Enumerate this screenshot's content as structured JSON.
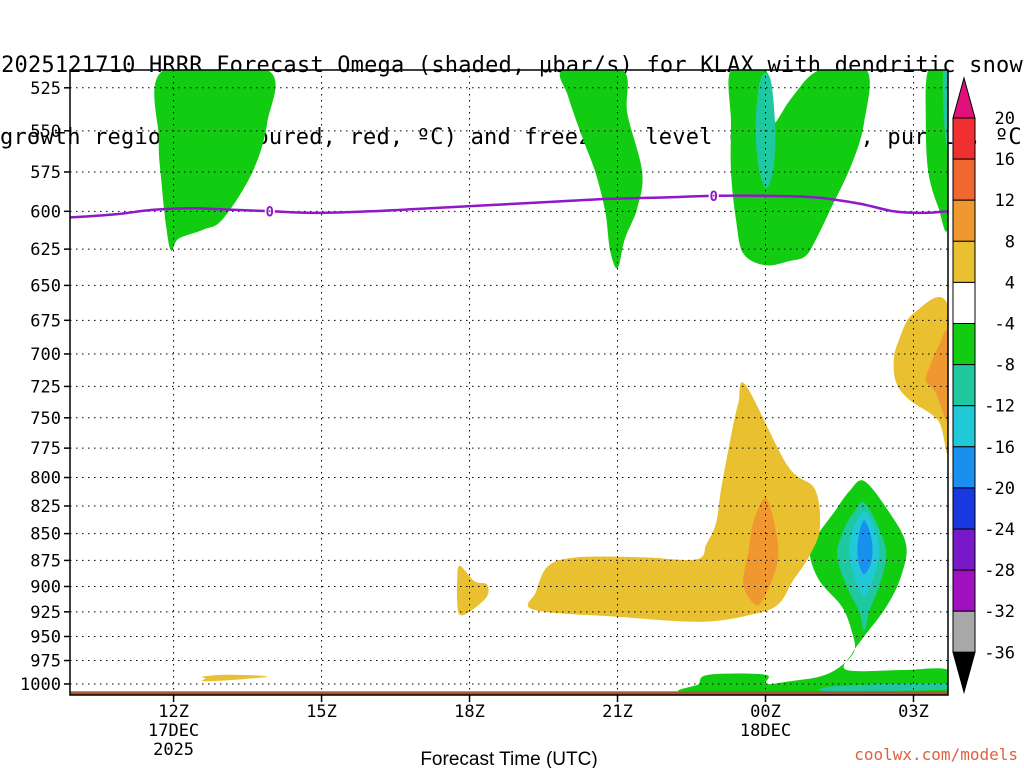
{
  "chart_data": {
    "type": "heatmap",
    "title_line1": "2025121710 HRRR Forecast Omega (shaded, μbar/s) for KLAX with dendritic snow",
    "title_line2": "growth region (contoured, red, ºC) and freezing level (contoured, purple, ºC)",
    "xlabel": "Forecast Time (UTC)",
    "ylabel": "",
    "xlim": [
      9.9,
      27.7
    ],
    "ylim": [
      1012,
      515
    ],
    "y_ticks": [
      525,
      550,
      575,
      600,
      625,
      650,
      675,
      700,
      725,
      750,
      775,
      800,
      825,
      850,
      875,
      900,
      925,
      950,
      975,
      1000
    ],
    "x_ticks": [
      {
        "hour": 12,
        "label": "12Z",
        "date": "17DEC",
        "year": "2025"
      },
      {
        "hour": 15,
        "label": "15Z",
        "date": "",
        "year": ""
      },
      {
        "hour": 18,
        "label": "18Z",
        "date": "",
        "year": ""
      },
      {
        "hour": 21,
        "label": "21Z",
        "date": "",
        "year": ""
      },
      {
        "hour": 24,
        "label": "00Z",
        "date": "18DEC",
        "year": ""
      },
      {
        "hour": 27,
        "label": "03Z",
        "date": "",
        "year": ""
      }
    ],
    "colorbar": {
      "labels": [
        "20",
        "16",
        "12",
        "8",
        "4",
        "-4",
        "-8",
        "-12",
        "-16",
        "-20",
        "-24",
        "-28",
        "-32",
        "-36"
      ],
      "bins": [
        {
          "range": [
            20,
            24
          ],
          "color": "#e0107a"
        },
        {
          "range": [
            16,
            20
          ],
          "color": "#f03030"
        },
        {
          "range": [
            12,
            16
          ],
          "color": "#f06830"
        },
        {
          "range": [
            8,
            12
          ],
          "color": "#f09830"
        },
        {
          "range": [
            4,
            8
          ],
          "color": "#e8c030"
        },
        {
          "range": [
            -4,
            4
          ],
          "color": "#ffffff"
        },
        {
          "range": [
            -8,
            -4
          ],
          "color": "#11cc11"
        },
        {
          "range": [
            -12,
            -8
          ],
          "color": "#20c8a0"
        },
        {
          "range": [
            -16,
            -12
          ],
          "color": "#20c8d8"
        },
        {
          "range": [
            -20,
            -16
          ],
          "color": "#1890f0"
        },
        {
          "range": [
            -24,
            -20
          ],
          "color": "#1838e0"
        },
        {
          "range": [
            -28,
            -24
          ],
          "color": "#7818c8"
        },
        {
          "range": [
            -32,
            -28
          ],
          "color": "#a010c0"
        },
        {
          "range": [
            -36,
            -32
          ],
          "color": "#a8a8a8"
        },
        {
          "range": [
            -40,
            -36
          ],
          "color": "#000000"
        }
      ]
    },
    "freezing_level": {
      "label": "0",
      "color": "#9018c8",
      "points": [
        [
          9.9,
          604
        ],
        [
          10.8,
          602
        ],
        [
          11.6,
          599
        ],
        [
          12.4,
          598
        ],
        [
          13.2,
          599
        ],
        [
          14.0,
          600
        ],
        [
          14.9,
          601
        ],
        [
          16.0,
          600
        ],
        [
          17.2,
          598
        ],
        [
          18.4,
          596
        ],
        [
          19.6,
          594
        ],
        [
          20.8,
          592
        ],
        [
          22.0,
          591
        ],
        [
          23.0,
          590
        ],
        [
          24.0,
          590
        ],
        [
          25.0,
          591
        ],
        [
          25.9,
          595
        ],
        [
          26.6,
          600
        ],
        [
          27.2,
          601
        ],
        [
          27.7,
          600
        ]
      ],
      "label_points": [
        [
          13.95,
          600
        ],
        [
          22.95,
          590
        ]
      ]
    },
    "omega_regions": [
      {
        "value": "-4 to -8",
        "color": "#11cc11",
        "points": [
          [
            11.8,
            515
          ],
          [
            13.9,
            515
          ],
          [
            13.9,
            545
          ],
          [
            13.6,
            575
          ],
          [
            13.0,
            605
          ],
          [
            12.6,
            612
          ],
          [
            12.1,
            618
          ],
          [
            11.95,
            626
          ],
          [
            11.85,
            610
          ],
          [
            11.75,
            580
          ],
          [
            11.7,
            555
          ]
        ]
      },
      {
        "value": "-4 to -8",
        "color": "#11cc11",
        "points": [
          [
            19.9,
            515
          ],
          [
            21.1,
            515
          ],
          [
            21.2,
            540
          ],
          [
            21.5,
            575
          ],
          [
            21.4,
            598
          ],
          [
            21.15,
            618
          ],
          [
            21.0,
            638
          ],
          [
            20.85,
            626
          ],
          [
            20.75,
            600
          ],
          [
            20.55,
            575
          ],
          [
            20.3,
            555
          ],
          [
            20.0,
            530
          ]
        ]
      },
      {
        "value": "-4 to -8",
        "color": "#11cc11",
        "points": [
          [
            23.3,
            515
          ],
          [
            24.0,
            515
          ],
          [
            24.15,
            540
          ],
          [
            24.2,
            545
          ],
          [
            24.55,
            530
          ],
          [
            25.1,
            515
          ],
          [
            26.05,
            515
          ],
          [
            26.0,
            545
          ],
          [
            25.75,
            570
          ],
          [
            25.3,
            600
          ],
          [
            25.0,
            620
          ],
          [
            24.8,
            630
          ],
          [
            24.5,
            633
          ],
          [
            24.0,
            636
          ],
          [
            23.55,
            628
          ],
          [
            23.4,
            605
          ],
          [
            23.3,
            575
          ],
          [
            23.3,
            545
          ]
        ]
      },
      {
        "value": "-4 to -8",
        "color": "#11cc11",
        "points": [
          [
            27.3,
            515
          ],
          [
            27.7,
            515
          ],
          [
            27.7,
            608
          ],
          [
            27.5,
            597
          ],
          [
            27.3,
            575
          ],
          [
            27.25,
            545
          ]
        ]
      },
      {
        "value": "-8 to -12",
        "color": "#20c8a0",
        "points": [
          [
            23.9,
            520
          ],
          [
            24.1,
            520
          ],
          [
            24.2,
            550
          ],
          [
            24.15,
            575
          ],
          [
            24.0,
            585
          ],
          [
            23.85,
            570
          ],
          [
            23.8,
            545
          ]
        ]
      },
      {
        "value": "-8 to -12",
        "color": "#20c8a0",
        "points": [
          [
            27.6,
            515
          ],
          [
            27.7,
            515
          ],
          [
            27.7,
            560
          ],
          [
            27.62,
            545
          ]
        ]
      },
      {
        "value": "-4 to -8",
        "color": "#11cc11",
        "points": [
          [
            26.0,
            803
          ],
          [
            26.5,
            830
          ],
          [
            26.85,
            860
          ],
          [
            26.75,
            890
          ],
          [
            26.45,
            920
          ],
          [
            26.0,
            950
          ],
          [
            25.75,
            968
          ],
          [
            25.65,
            985
          ],
          [
            26.8,
            985
          ],
          [
            27.7,
            985
          ],
          [
            27.7,
            1010
          ],
          [
            22.6,
            1010
          ],
          [
            22.65,
            1000
          ],
          [
            22.85,
            990
          ],
          [
            24.0,
            990
          ],
          [
            24.0,
            1000
          ],
          [
            24.5,
            997
          ],
          [
            25.1,
            992
          ],
          [
            25.5,
            982
          ],
          [
            25.8,
            965
          ],
          [
            25.75,
            945
          ],
          [
            25.55,
            920
          ],
          [
            25.1,
            895
          ],
          [
            24.9,
            870
          ],
          [
            25.0,
            855
          ],
          [
            25.4,
            830
          ],
          [
            25.7,
            812
          ]
        ]
      },
      {
        "value": "-8 to -12",
        "color": "#20c8a0",
        "points": [
          [
            26.0,
            822
          ],
          [
            26.3,
            845
          ],
          [
            26.45,
            870
          ],
          [
            26.3,
            900
          ],
          [
            26.1,
            925
          ],
          [
            26.0,
            945
          ],
          [
            25.9,
            925
          ],
          [
            25.65,
            900
          ],
          [
            25.45,
            870
          ],
          [
            25.6,
            845
          ],
          [
            25.8,
            830
          ]
        ]
      },
      {
        "value": "-12 to -16",
        "color": "#20c8d8",
        "points": [
          [
            26.0,
            830
          ],
          [
            26.25,
            850
          ],
          [
            26.3,
            870
          ],
          [
            26.2,
            890
          ],
          [
            26.0,
            910
          ],
          [
            25.8,
            890
          ],
          [
            25.7,
            870
          ],
          [
            25.75,
            850
          ]
        ]
      },
      {
        "value": "-16 to -20",
        "color": "#1890f0",
        "points": [
          [
            26.0,
            838
          ],
          [
            26.15,
            855
          ],
          [
            26.15,
            875
          ],
          [
            26.0,
            888
          ],
          [
            25.88,
            875
          ],
          [
            25.88,
            855
          ]
        ]
      },
      {
        "value": "-8 to -12",
        "color": "#20c8a0",
        "points": [
          [
            25.3,
            1003
          ],
          [
            26.5,
            1000
          ],
          [
            27.7,
            1000
          ],
          [
            27.7,
            1006
          ],
          [
            25.3,
            1008
          ]
        ]
      },
      {
        "value": "4 to 8",
        "color": "#e8c030",
        "points": [
          [
            23.6,
            724
          ],
          [
            24.45,
            790
          ],
          [
            25.0,
            810
          ],
          [
            25.1,
            845
          ],
          [
            24.9,
            870
          ],
          [
            24.55,
            895
          ],
          [
            24.25,
            918
          ],
          [
            23.7,
            928
          ],
          [
            22.7,
            935
          ],
          [
            21.0,
            930
          ],
          [
            19.3,
            923
          ],
          [
            19.35,
            905
          ],
          [
            19.6,
            880
          ],
          [
            20.2,
            872
          ],
          [
            21.5,
            872
          ],
          [
            22.6,
            874
          ],
          [
            22.8,
            860
          ],
          [
            23.0,
            840
          ],
          [
            23.1,
            810
          ],
          [
            23.3,
            765
          ],
          [
            23.45,
            738
          ]
        ]
      },
      {
        "value": "8 to 12",
        "color": "#f09830",
        "points": [
          [
            24.0,
            818
          ],
          [
            24.2,
            845
          ],
          [
            24.25,
            875
          ],
          [
            24.0,
            908
          ],
          [
            23.8,
            918
          ],
          [
            23.55,
            898
          ],
          [
            23.65,
            868
          ],
          [
            23.75,
            840
          ]
        ]
      },
      {
        "value": "4 to 8",
        "color": "#e8c030",
        "points": [
          [
            17.8,
            880
          ],
          [
            18.1,
            895
          ],
          [
            18.35,
            898
          ],
          [
            18.35,
            910
          ],
          [
            18.0,
            925
          ],
          [
            17.8,
            928
          ],
          [
            17.75,
            915
          ],
          [
            17.75,
            895
          ]
        ]
      },
      {
        "value": "4 to 8",
        "color": "#e8c030",
        "points": [
          [
            12.6,
            992
          ],
          [
            13.1,
            990
          ],
          [
            13.9,
            992
          ],
          [
            13.1,
            996
          ],
          [
            12.6,
            997
          ],
          [
            12.65,
            994
          ]
        ]
      },
      {
        "value": "4 to 8",
        "color": "#e8c030",
        "points": [
          [
            27.7,
            665
          ],
          [
            27.7,
            775
          ],
          [
            27.5,
            752
          ],
          [
            26.9,
            735
          ],
          [
            26.65,
            722
          ],
          [
            26.6,
            705
          ],
          [
            26.7,
            690
          ],
          [
            27.0,
            670
          ]
        ]
      },
      {
        "value": "8 to 12",
        "color": "#f09830",
        "points": [
          [
            27.7,
            685
          ],
          [
            27.7,
            750
          ],
          [
            27.45,
            730
          ],
          [
            27.25,
            720
          ],
          [
            27.35,
            708
          ],
          [
            27.5,
            695
          ]
        ]
      }
    ],
    "surface": {
      "label": "terrain",
      "color": "#a85a30",
      "pressure_top": 1008
    }
  },
  "credit": "coolwx.com/models"
}
